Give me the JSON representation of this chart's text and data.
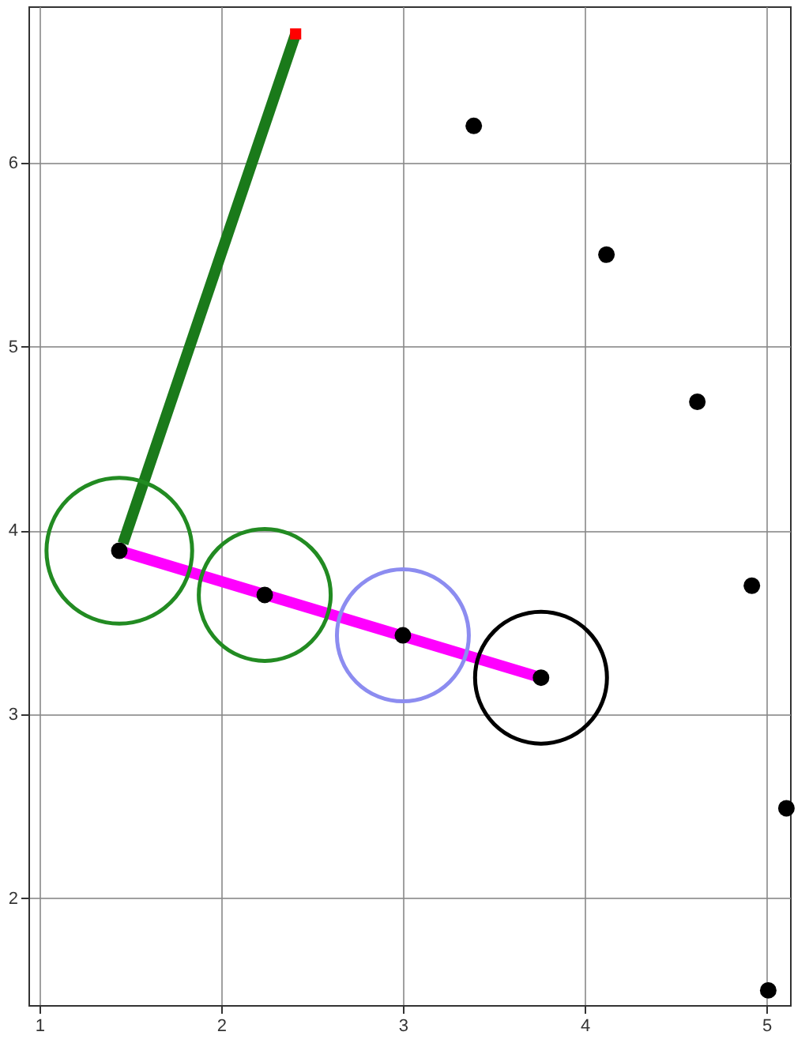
{
  "chart_data": {
    "type": "scatter",
    "xlim": [
      0.94,
      5.13
    ],
    "ylim": [
      1.42,
      6.85
    ],
    "xticks": [
      1,
      2,
      3,
      4,
      5
    ],
    "yticks": [
      2,
      3,
      4,
      5,
      6
    ],
    "grid": true,
    "series": [
      {
        "type": "line",
        "color": "#1a7a1a",
        "x": [
          1.46,
          2.41
        ],
        "values": [
          3.93,
          6.7
        ]
      },
      {
        "type": "line",
        "color": "#ff00ff",
        "x": [
          1.44,
          3.76
        ],
        "values": [
          3.89,
          3.2
        ]
      },
      {
        "type": "bubble",
        "x": [
          1.44,
          2.24,
          3.0,
          3.76
        ],
        "values": [
          3.89,
          3.65,
          3.43,
          3.2
        ],
        "sizes": [
          1,
          0.82,
          0.82,
          0.82
        ],
        "colors": [
          "#228b22",
          "#228b22",
          "#8c8cf0",
          "#000000"
        ]
      },
      {
        "color": "#000000",
        "marker": "circle",
        "x": [
          1.44,
          2.24,
          3.0,
          3.76,
          3.39,
          4.12,
          4.62,
          4.92,
          5.11,
          5.01
        ],
        "values": [
          3.89,
          3.65,
          3.43,
          3.2,
          6.2,
          5.5,
          4.7,
          3.7,
          2.49,
          1.5
        ]
      },
      {
        "type": "scatter",
        "color": "#ff0000",
        "marker": "square",
        "x": [
          2.41
        ],
        "values": [
          6.7
        ]
      }
    ]
  }
}
